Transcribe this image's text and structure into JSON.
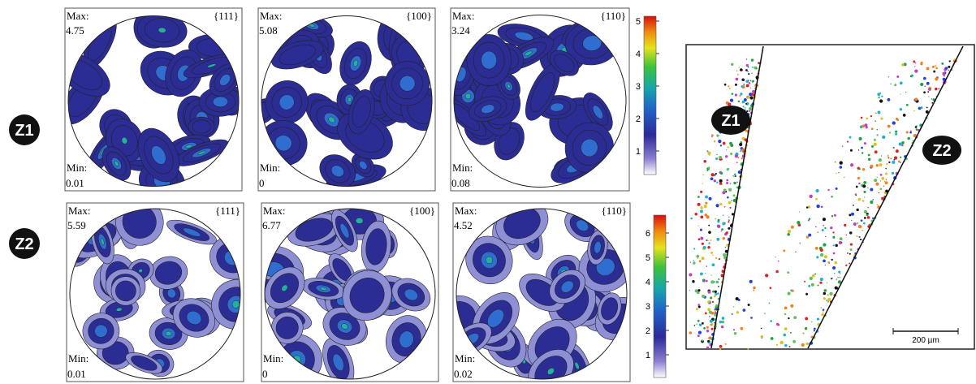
{
  "row_labels": [
    "Z1",
    "Z2"
  ],
  "pole_figures": [
    [
      {
        "plane": "{111}",
        "max_label": "Max:",
        "max": 4.75,
        "min_label": "Min:",
        "min": 0.01
      },
      {
        "plane": "{100}",
        "max_label": "Max:",
        "max": 5.08,
        "min_label": "Min:",
        "min": 0
      },
      {
        "plane": "{110}",
        "max_label": "Max:",
        "max": 3.24,
        "min_label": "Min:",
        "min": 0.08
      }
    ],
    [
      {
        "plane": "{111}",
        "max_label": "Max:",
        "max": 5.59,
        "min_label": "Min:",
        "min": 0.01
      },
      {
        "plane": "{100}",
        "max_label": "Max:",
        "max": 6.77,
        "min_label": "Min:",
        "min": 0
      },
      {
        "plane": "{110}",
        "max_label": "Max:",
        "max": 4.52,
        "min_label": "Min:",
        "min": 0.02
      }
    ]
  ],
  "colorbars": [
    {
      "ticks": [
        1,
        2,
        3,
        4,
        5
      ]
    },
    {
      "ticks": [
        1,
        2,
        3,
        4,
        5,
        6
      ]
    }
  ],
  "micrograph": {
    "zone_labels": [
      "Z1",
      "Z2"
    ],
    "scale_bar": "200 µm"
  }
}
